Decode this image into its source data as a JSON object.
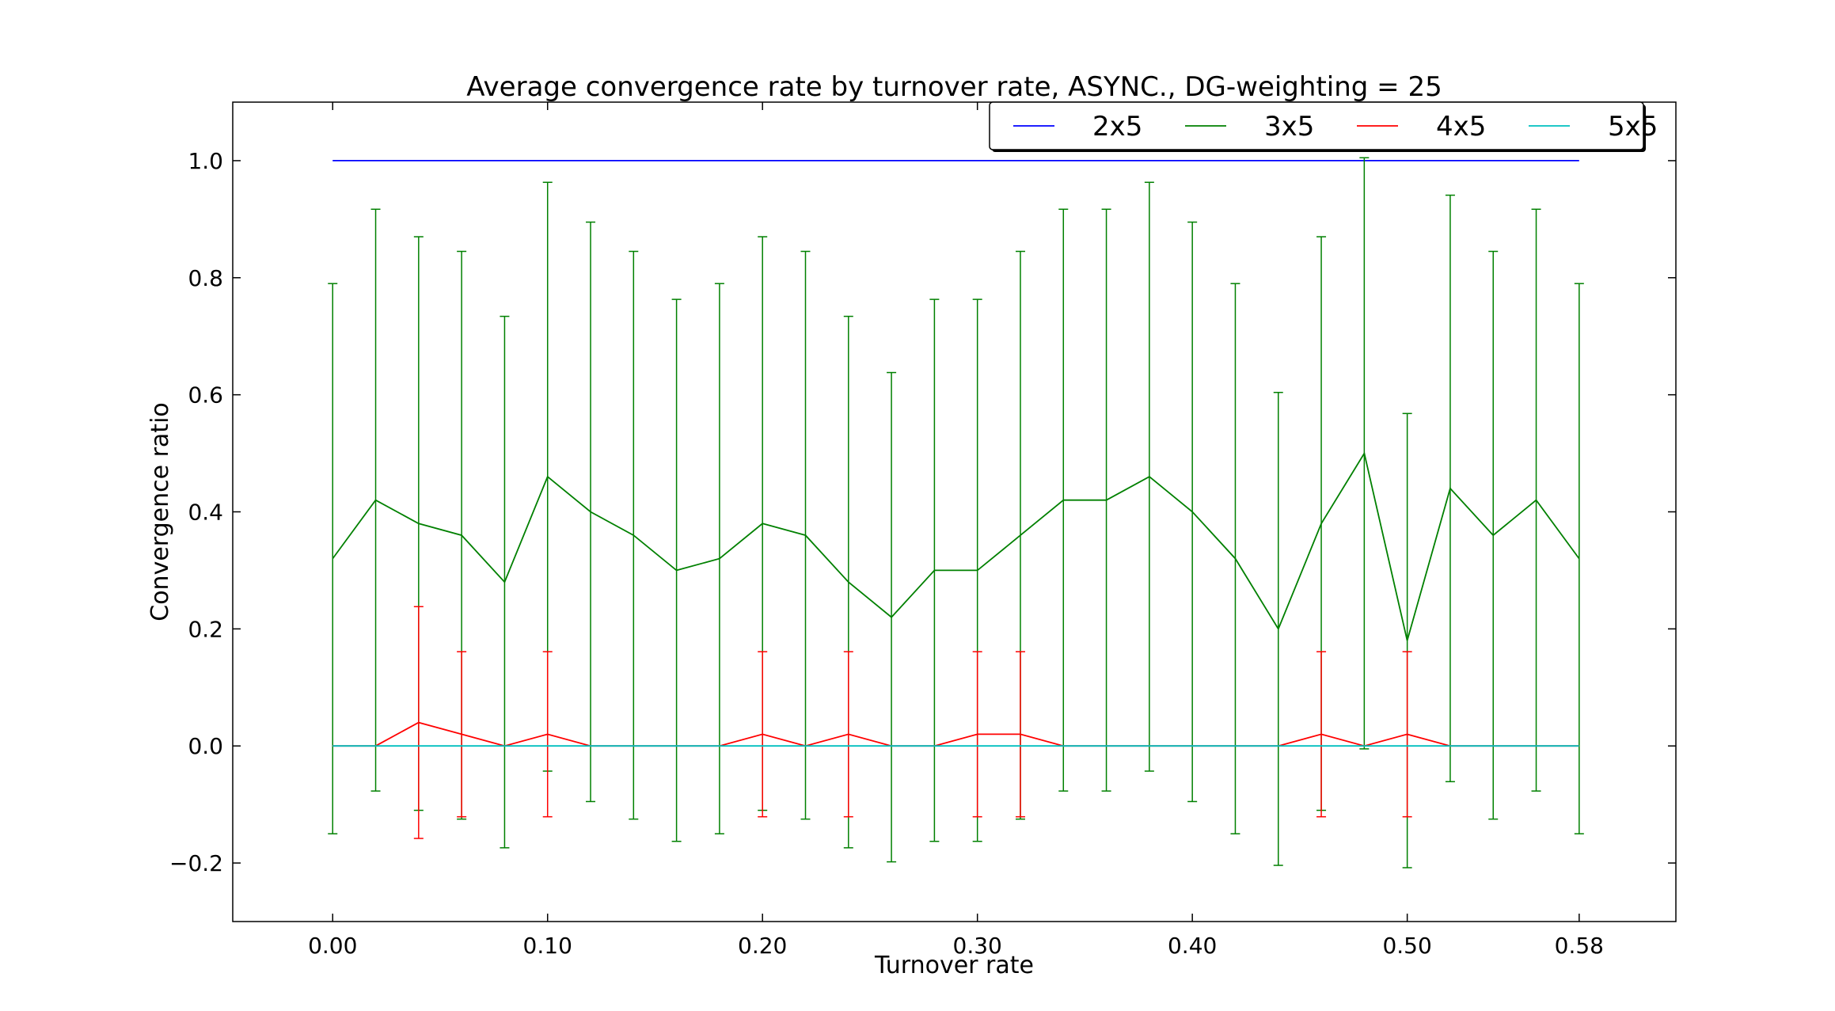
{
  "chart_data": {
    "type": "line",
    "title": "Average convergence rate by turnover rate, ASYNC., DG-weighting = 25",
    "xlabel": "Turnover rate",
    "ylabel": "Convergence ratio",
    "xlim": [
      -0.0465,
      0.625
    ],
    "ylim": [
      -0.3,
      1.1
    ],
    "x_ticks": [
      0.0,
      0.1,
      0.2,
      0.3,
      0.4,
      0.5,
      0.58
    ],
    "x_tick_labels": [
      "0.00",
      "0.10",
      "0.20",
      "0.30",
      "0.40",
      "0.50",
      "0.58"
    ],
    "y_ticks": [
      -0.2,
      0.0,
      0.2,
      0.4,
      0.6,
      0.8,
      1.0
    ],
    "y_tick_labels": [
      "−0.2",
      "0.0",
      "0.2",
      "0.4",
      "0.6",
      "0.8",
      "1.0"
    ],
    "grid": false,
    "legend_position": "top-right",
    "x": [
      0.0,
      0.02,
      0.04,
      0.06,
      0.08,
      0.1,
      0.12,
      0.14,
      0.16,
      0.18,
      0.2,
      0.22,
      0.24,
      0.26,
      0.28,
      0.3,
      0.32,
      0.34,
      0.36,
      0.38,
      0.4,
      0.42,
      0.44,
      0.46,
      0.48,
      0.5,
      0.52,
      0.54,
      0.56,
      0.58
    ],
    "series": [
      {
        "name": "2x5",
        "color": "#0000ff",
        "values": [
          1,
          1,
          1,
          1,
          1,
          1,
          1,
          1,
          1,
          1,
          1,
          1,
          1,
          1,
          1,
          1,
          1,
          1,
          1,
          1,
          1,
          1,
          1,
          1,
          1,
          1,
          1,
          1,
          1,
          1
        ],
        "errors": [
          0,
          0,
          0,
          0,
          0,
          0,
          0,
          0,
          0,
          0,
          0,
          0,
          0,
          0,
          0,
          0,
          0,
          0,
          0,
          0,
          0,
          0,
          0,
          0,
          0,
          0,
          0,
          0,
          0,
          0
        ]
      },
      {
        "name": "3x5",
        "color": "#008000",
        "values": [
          0.32,
          0.42,
          0.38,
          0.36,
          0.28,
          0.46,
          0.4,
          0.36,
          0.3,
          0.32,
          0.38,
          0.36,
          0.28,
          0.22,
          0.3,
          0.3,
          0.36,
          0.42,
          0.42,
          0.46,
          0.4,
          0.32,
          0.2,
          0.38,
          0.5,
          0.18,
          0.44,
          0.36,
          0.42,
          0.32
        ],
        "errors": [
          0.47,
          0.497,
          0.49,
          0.485,
          0.454,
          0.503,
          0.495,
          0.485,
          0.463,
          0.47,
          0.49,
          0.485,
          0.454,
          0.418,
          0.463,
          0.463,
          0.485,
          0.497,
          0.497,
          0.503,
          0.495,
          0.47,
          0.404,
          0.49,
          0.505,
          0.388,
          0.501,
          0.485,
          0.497,
          0.47
        ]
      },
      {
        "name": "4x5",
        "color": "#ff0000",
        "values": [
          0,
          0,
          0.04,
          0.02,
          0,
          0.02,
          0,
          0,
          0,
          0,
          0.02,
          0,
          0.02,
          0,
          0,
          0.02,
          0.02,
          0,
          0,
          0,
          0,
          0,
          0,
          0.02,
          0,
          0.02,
          0,
          0,
          0,
          0
        ],
        "errors": [
          0,
          0,
          0.198,
          0.141,
          0,
          0.141,
          0,
          0,
          0,
          0,
          0.141,
          0,
          0.141,
          0,
          0,
          0.141,
          0.141,
          0,
          0,
          0,
          0,
          0,
          0,
          0.141,
          0,
          0.141,
          0,
          0,
          0,
          0
        ]
      },
      {
        "name": "5x5",
        "color": "#00bfbf",
        "values": [
          0,
          0,
          0,
          0,
          0,
          0,
          0,
          0,
          0,
          0,
          0,
          0,
          0,
          0,
          0,
          0,
          0,
          0,
          0,
          0,
          0,
          0,
          0,
          0,
          0,
          0,
          0,
          0,
          0,
          0
        ],
        "errors": [
          0,
          0,
          0,
          0,
          0,
          0,
          0,
          0,
          0,
          0,
          0,
          0,
          0,
          0,
          0,
          0,
          0,
          0,
          0,
          0,
          0,
          0,
          0,
          0,
          0,
          0,
          0,
          0,
          0,
          0
        ]
      }
    ]
  }
}
